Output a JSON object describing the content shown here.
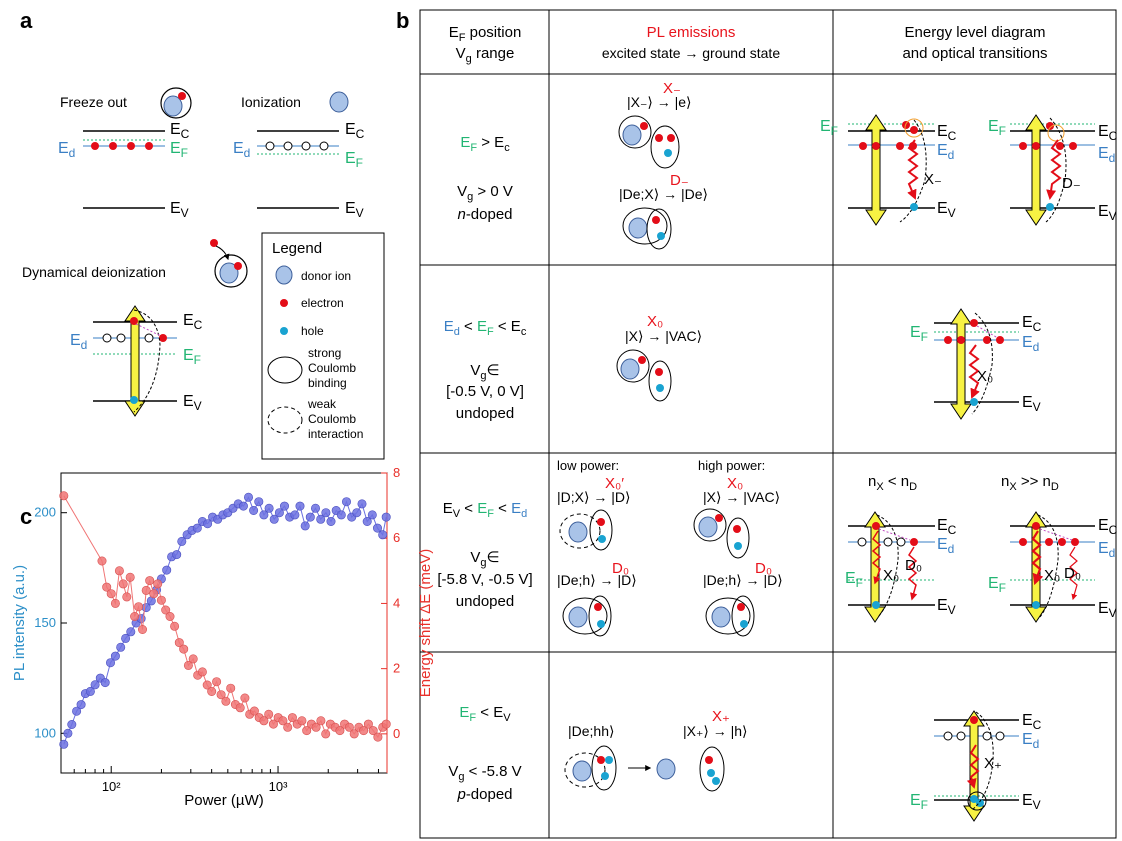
{
  "colors": {
    "green": "#22b573",
    "blue_text": "#3a7fc4",
    "red": "#e8141d",
    "donor_fill": "#a9c3e8",
    "donor_stroke": "#3d5f9a",
    "electron": "#e30d18",
    "hole": "#19a3d1",
    "arrow_yellow": "#f7f243",
    "chart_blue": "#6b70e0",
    "chart_red": "#f07474",
    "axis_blue": "#2c8fc8",
    "axis_red": "#e8302a"
  },
  "panel_a": {
    "label": "a",
    "freeze_out": "Freeze out",
    "ionization": "Ionization",
    "dynamical": "Dynamical deionization",
    "Ec_base": "E",
    "Ec_sub": "C",
    "Ev_base": "E",
    "Ev_sub": "V",
    "Ed_base": "E",
    "Ed_sub": "d",
    "EF_base": "E",
    "EF_sub": "F",
    "legend": {
      "title": "Legend",
      "donor": "donor ion",
      "electron": "electron",
      "hole": "hole",
      "strong1": "strong",
      "strong2": "Coulomb",
      "strong3": "binding",
      "weak1": "weak",
      "weak2": "Coulomb",
      "weak3": "interaction"
    }
  },
  "panel_b": {
    "label": "b",
    "header": {
      "col1_l1_base": "E",
      "col1_l1_sub": "F",
      "col1_l1_rest": " position",
      "col1_l2_base": "V",
      "col1_l2_sub": "g",
      "col1_l2_rest": " range",
      "col2_title": "PL emissions",
      "col2_sub": "excited state  →  ground state",
      "col3_l1": "Energy level diagram",
      "col3_l2": "and optical transitions"
    },
    "row1": {
      "cond_lhs_base": "E",
      "cond_lhs_sub": "F",
      "cond_op": " > ",
      "cond_rhs_base": "E",
      "cond_rhs_sub": "c",
      "vg": "V",
      "vg_sub": "g",
      "vg_rest": " > 0 V",
      "doping": "n",
      "doping_rest": "-doped",
      "t1": "|X₋⟩ → |e⟩",
      "t1_label": "X₋",
      "t2": "|De;X⟩ → |De⟩",
      "t2_label": "D₋",
      "diag_label1": "X₋",
      "diag_label2": "D₋"
    },
    "row2": {
      "cond_a": "E",
      "cond_a_sub": "d",
      "cond_mid": " < ",
      "cond_b": "E",
      "cond_b_sub": "F",
      "cond_c": "E",
      "cond_c_sub": "c",
      "vg_l1": "V",
      "vg_l1_sub": "g",
      "vg_l1_rest": "∈",
      "vg_l2": "[-0.5 V, 0 V]",
      "doping": "undoped",
      "t1": "|X⟩ → |VAC⟩",
      "t1_label": "X₀",
      "diag_label": "X₀"
    },
    "row3": {
      "cond_a": "E",
      "cond_a_sub": "V",
      "cond_b": "E",
      "cond_b_sub": "F",
      "cond_c": "E",
      "cond_c_sub": "d",
      "vg_l1": "V",
      "vg_l1_sub": "g",
      "vg_l1_rest": "∈",
      "vg_l2": "[-5.8 V, -0.5 V]",
      "doping": "undoped",
      "low_power": "low power:",
      "high_power": "high power:",
      "t_low1": "|D;X⟩ → |D⟩",
      "t_low1_label": "X₀′",
      "t_high1": "|X⟩ → |VAC⟩",
      "t_high1_label": "X₀",
      "t_low2": "|De;h⟩ → |D⟩",
      "t_low2_label": "D₀",
      "t_high2": "|De;h⟩ → |D⟩",
      "t_high2_label": "D₀",
      "nx_lt": "n",
      "nx_lt_sub": "X",
      "nx_lt_mid": " < n",
      "nx_lt_sub2": "D",
      "nx_gg": "n",
      "nx_gg_sub": "X",
      "nx_gg_mid": " >> n",
      "nx_gg_sub2": "D",
      "diag_x0": "X₀",
      "diag_d0": "D₀"
    },
    "row4": {
      "cond_lhs_base": "E",
      "cond_lhs_sub": "F",
      "cond_op": " < ",
      "cond_rhs_base": "E",
      "cond_rhs_sub": "V",
      "vg": "V",
      "vg_sub": "g",
      "vg_rest": " < -5.8 V",
      "doping": "p",
      "doping_rest": "-doped",
      "t1": "|De;hh⟩",
      "t2": "|X₊⟩ → |h⟩",
      "t2_label": "X₊",
      "diag_label": "X₊"
    }
  },
  "panel_c": {
    "label": "c"
  },
  "chart_data": {
    "type": "scatter",
    "xlabel": "Power (µW)",
    "ylabel_left": "PL intensity (a.u.)",
    "ylabel_right": "Energy shift  ΔE (meV)",
    "xscale": "log",
    "xlim": [
      50,
      4500
    ],
    "ylim_left": [
      82,
      218
    ],
    "ylim_right": [
      -1.2,
      8
    ],
    "x_tick_labels": [
      "10²",
      "10³"
    ],
    "x_ticks": [
      100,
      1000
    ],
    "y_left_ticks": [
      100,
      150,
      200
    ],
    "y_right_ticks": [
      0,
      2,
      4,
      6,
      8
    ],
    "grid": false,
    "series": [
      {
        "axis": "left",
        "color": "#6b70e0",
        "x": [
          52,
          55,
          58,
          62,
          66,
          70,
          75,
          80,
          86,
          92,
          99,
          106,
          114,
          122,
          131,
          141,
          151,
          162,
          174,
          187,
          200,
          215,
          230,
          247,
          265,
          285,
          305,
          328,
          352,
          378,
          405,
          435,
          467,
          500,
          537,
          577,
          620,
          665,
          714,
          767,
          823,
          884,
          949,
          1019,
          1094,
          1175,
          1262,
          1355,
          1455,
          1562,
          1678,
          1802,
          1935,
          2078,
          2232,
          2396,
          2573,
          2763,
          2968,
          3187,
          3422,
          3675,
          3947,
          4239,
          4450
        ],
        "y": [
          95,
          100,
          104,
          110,
          113,
          118,
          119,
          122,
          125,
          123,
          132,
          135,
          139,
          143,
          146,
          150,
          152,
          157,
          160,
          165,
          170,
          174,
          180,
          181,
          187,
          190,
          192,
          193,
          196,
          195,
          198,
          197,
          199,
          200,
          202,
          204,
          203,
          207,
          201,
          205,
          199,
          202,
          197,
          200,
          203,
          198,
          199,
          203,
          194,
          198,
          202,
          197,
          200,
          196,
          201,
          199,
          205,
          198,
          200,
          204,
          196,
          199,
          193,
          190,
          198
        ]
      },
      {
        "axis": "right",
        "color": "#f07474",
        "x": [
          52,
          88,
          94,
          100,
          106,
          112,
          118,
          124,
          130,
          138,
          146,
          154,
          162,
          170,
          180,
          190,
          200,
          212,
          225,
          240,
          256,
          272,
          290,
          310,
          330,
          352,
          376,
          400,
          428,
          456,
          487,
          520,
          555,
          593,
          633,
          676,
          722,
          771,
          823,
          879,
          938,
          1002,
          1070,
          1142,
          1220,
          1302,
          1390,
          1485,
          1585,
          1692,
          1807,
          1930,
          2060,
          2200,
          2349,
          2508,
          2678,
          2860,
          3053,
          3260,
          3481,
          3717,
          3969,
          4238,
          4450
        ],
        "y": [
          7.3,
          5.3,
          4.5,
          4.3,
          4.0,
          5.0,
          4.6,
          4.2,
          4.8,
          3.6,
          3.9,
          3.2,
          4.4,
          4.7,
          4.3,
          4.6,
          4.1,
          3.8,
          3.6,
          3.3,
          2.8,
          2.6,
          2.1,
          2.3,
          1.8,
          1.9,
          1.5,
          1.3,
          1.6,
          1.2,
          1.0,
          1.4,
          0.9,
          0.8,
          1.1,
          0.6,
          0.7,
          0.5,
          0.4,
          0.6,
          0.3,
          0.5,
          0.4,
          0.2,
          0.5,
          0.3,
          0.4,
          0.1,
          0.3,
          0.2,
          0.4,
          0.0,
          0.3,
          0.2,
          0.1,
          0.3,
          0.2,
          0.0,
          0.2,
          0.1,
          0.3,
          0.1,
          -0.1,
          0.2,
          0.3
        ]
      }
    ]
  }
}
